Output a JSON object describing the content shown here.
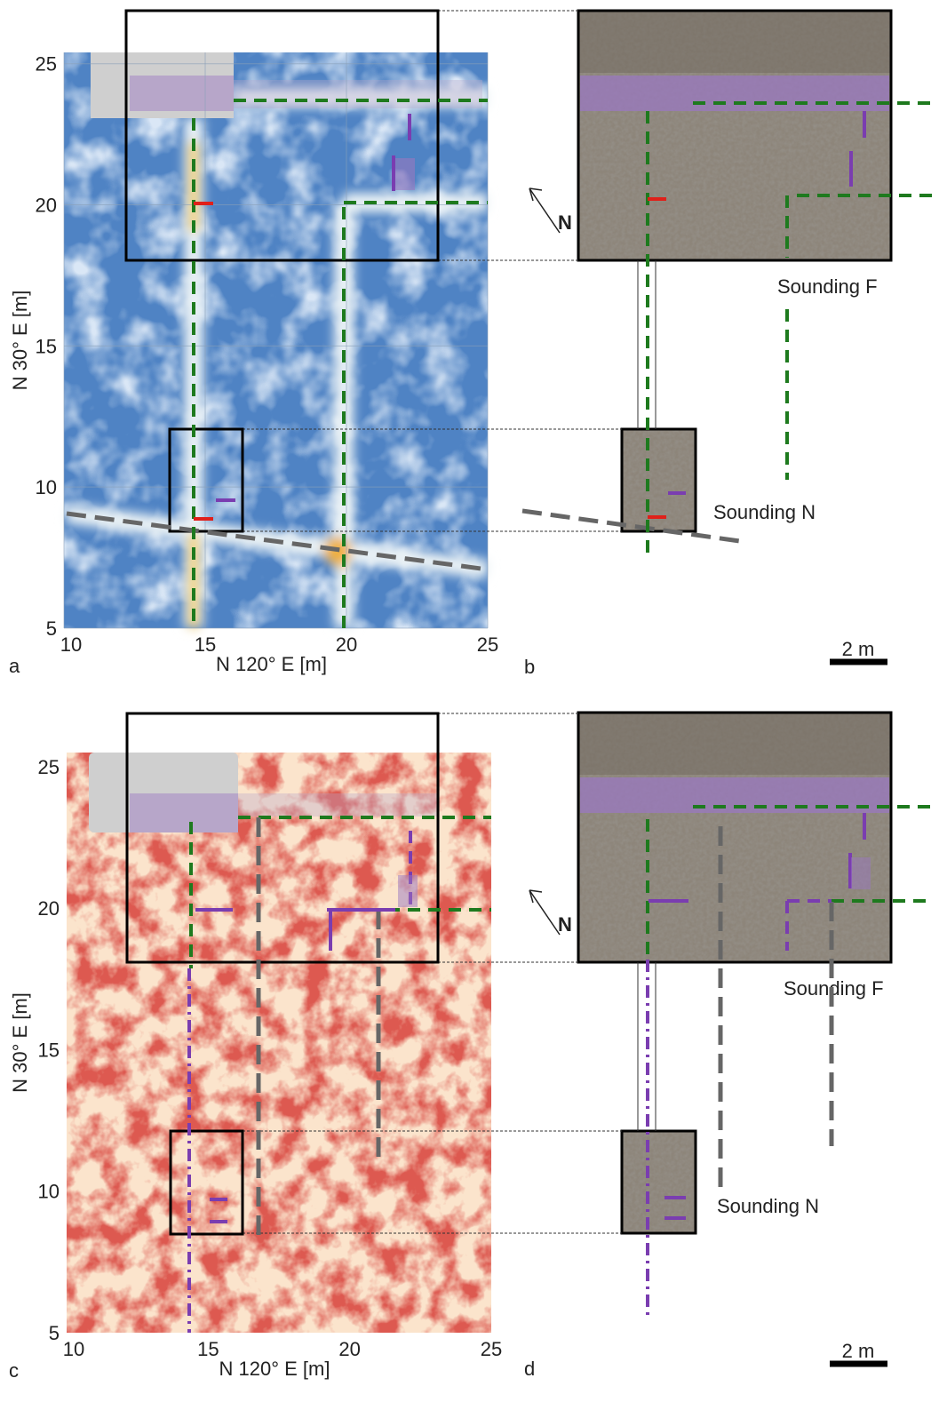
{
  "panels": [
    {
      "letter": "a",
      "type": "map",
      "xlabel": "N 120° E [m]",
      "ylabel": "N 30° E [m]",
      "xlim": [
        10,
        25
      ],
      "ylim": [
        5,
        25.4
      ],
      "xticks": [
        10,
        15,
        20,
        25
      ],
      "yticks": [
        5,
        10,
        15,
        20,
        25
      ],
      "grid": true,
      "colormap": "blue"
    },
    {
      "letter": "b",
      "type": "photo",
      "labels": [
        "Sounding F",
        "Sounding N"
      ],
      "north": "N",
      "scale": "2 m"
    },
    {
      "letter": "c",
      "type": "map",
      "xlabel": "N 120° E [m]",
      "ylabel": "N 30° E [m]",
      "xlim": [
        10,
        25
      ],
      "ylim": [
        5,
        25.5
      ],
      "xticks": [
        10,
        15,
        20,
        25
      ],
      "yticks": [
        5,
        10,
        15,
        20,
        25
      ],
      "grid": false,
      "colormap": "red"
    },
    {
      "letter": "d",
      "type": "photo",
      "labels": [
        "Sounding F",
        "Sounding N"
      ],
      "north": "N",
      "scale": "2 m"
    }
  ]
}
